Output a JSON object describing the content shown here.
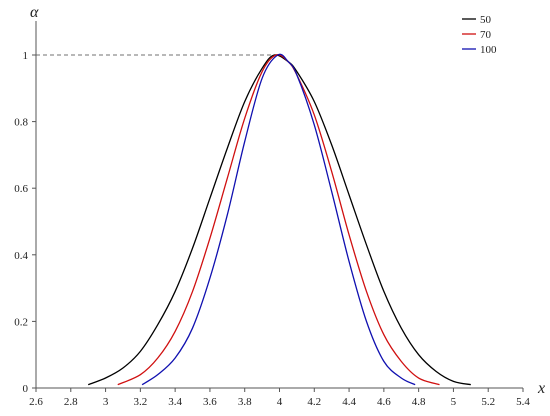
{
  "chart_data": {
    "type": "line",
    "xlabel": "x",
    "ylabel": "α",
    "xlim": [
      2.6,
      5.4
    ],
    "ylim": [
      0,
      1
    ],
    "x_ticks": [
      2.6,
      2.8,
      3,
      3.2,
      3.4,
      3.6,
      3.8,
      4,
      4.2,
      4.4,
      4.6,
      4.8,
      5,
      5.2,
      5.4
    ],
    "x_tick_labels": [
      "2.6",
      "2.8",
      "3",
      "3.2",
      "3.4",
      "3.6",
      "3.8",
      "4",
      "4.2",
      "4.4",
      "4.6",
      "4.8",
      "5",
      "5.2",
      "5.4"
    ],
    "y_ticks": [
      0,
      0.2,
      0.4,
      0.6,
      0.8,
      1
    ],
    "y_tick_labels": [
      "0",
      "0.2",
      "0.4",
      "0.6",
      "0.8",
      "1"
    ],
    "grid": false,
    "legend_position": "top-right",
    "reference_line": {
      "y": 1,
      "x_from": 2.6,
      "x_to": 3.98,
      "style": "dashed"
    },
    "series": [
      {
        "name": "50",
        "color": "#000000",
        "x": [
          2.9,
          3.0,
          3.1,
          3.2,
          3.3,
          3.4,
          3.5,
          3.6,
          3.7,
          3.8,
          3.9,
          3.97,
          4.05,
          4.1,
          4.2,
          4.3,
          4.4,
          4.5,
          4.6,
          4.7,
          4.8,
          4.9,
          5.0,
          5.1
        ],
        "y": [
          0.01,
          0.03,
          0.06,
          0.11,
          0.19,
          0.29,
          0.42,
          0.57,
          0.72,
          0.86,
          0.96,
          1.0,
          0.98,
          0.95,
          0.86,
          0.73,
          0.58,
          0.43,
          0.29,
          0.18,
          0.1,
          0.05,
          0.02,
          0.01
        ]
      },
      {
        "name": "70",
        "color": "#d01010",
        "x": [
          3.07,
          3.2,
          3.3,
          3.4,
          3.5,
          3.6,
          3.7,
          3.8,
          3.9,
          3.98,
          4.05,
          4.1,
          4.2,
          4.3,
          4.4,
          4.5,
          4.6,
          4.7,
          4.8,
          4.92
        ],
        "y": [
          0.01,
          0.04,
          0.09,
          0.17,
          0.29,
          0.45,
          0.63,
          0.81,
          0.95,
          1.0,
          0.98,
          0.94,
          0.82,
          0.65,
          0.46,
          0.29,
          0.16,
          0.08,
          0.03,
          0.01
        ]
      },
      {
        "name": "100",
        "color": "#1010b0",
        "x": [
          3.21,
          3.3,
          3.4,
          3.5,
          3.6,
          3.7,
          3.8,
          3.9,
          3.99,
          4.05,
          4.1,
          4.2,
          4.3,
          4.4,
          4.5,
          4.6,
          4.7,
          4.78
        ],
        "y": [
          0.01,
          0.04,
          0.09,
          0.18,
          0.33,
          0.52,
          0.74,
          0.93,
          1.0,
          0.98,
          0.94,
          0.79,
          0.59,
          0.38,
          0.2,
          0.08,
          0.03,
          0.01
        ]
      }
    ]
  }
}
